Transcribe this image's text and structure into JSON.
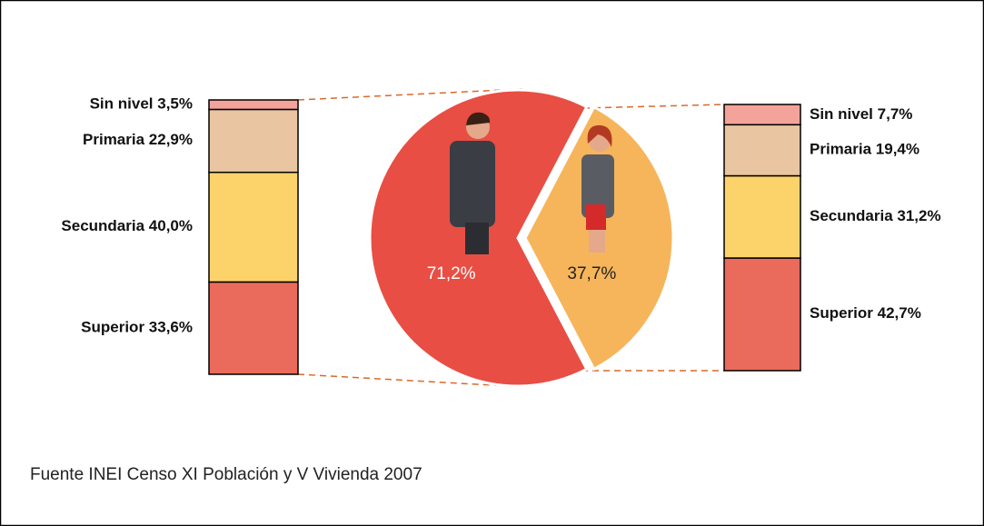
{
  "chart_data": [
    {
      "type": "pie",
      "values": [
        71.2,
        37.7
      ],
      "value_labels": [
        "71,2%",
        "37,7%"
      ],
      "colors": [
        "#e84e43",
        "#f6b55b"
      ],
      "label_colors": [
        "#ffffff",
        "#222222"
      ]
    },
    {
      "type": "stacked-bar",
      "side": "left",
      "categories": [
        "Sin nivel",
        "Primaria",
        "Secundaria",
        "Superior"
      ],
      "values": [
        3.5,
        22.9,
        40.0,
        33.6
      ],
      "value_labels": [
        "3,5%",
        "22,9%",
        "40,0%",
        "33,6%"
      ],
      "colors": [
        "#f4a39a",
        "#e9c6a1",
        "#fcd36b",
        "#ea6b5b"
      ]
    },
    {
      "type": "stacked-bar",
      "side": "right",
      "categories": [
        "Sin nivel",
        "Primaria",
        "Secundaria",
        "Superior"
      ],
      "values": [
        7.7,
        19.4,
        31.2,
        42.7
      ],
      "value_labels": [
        "7,7%",
        "19,4%",
        "31,2%",
        "42,7%"
      ],
      "colors": [
        "#f4a39a",
        "#e9c6a1",
        "#fcd36b",
        "#ea6b5b"
      ]
    }
  ],
  "source": "Fuente INEI Censo XI Población y V Vivienda 2007"
}
